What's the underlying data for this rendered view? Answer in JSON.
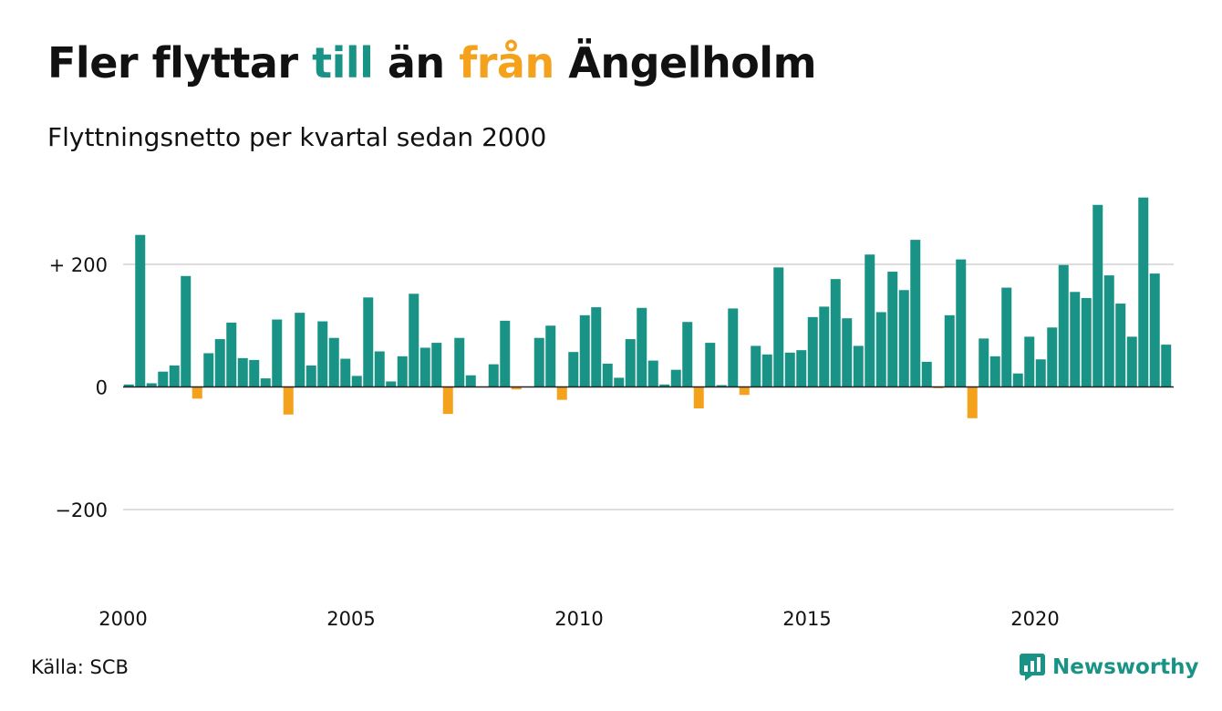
{
  "header": {
    "title_part1": "Fler flyttar ",
    "title_till": "till",
    "title_part2": " än ",
    "title_fran": "från",
    "title_part3": " Ängelholm",
    "subtitle": "Flyttningsnetto per kvartal sedan 2000"
  },
  "footer": {
    "source": "Källa: SCB",
    "brand": "Newsworthy"
  },
  "colors": {
    "positive": "#1a9387",
    "negative": "#f4a11c",
    "grid": "#dddddd",
    "axis": "#222222"
  },
  "chart_data": {
    "type": "bar",
    "title": "Fler flyttar till än från Ängelholm",
    "subtitle": "Flyttningsnetto per kvartal sedan 2000",
    "ylim": [
      -300,
      330
    ],
    "yticks": [
      {
        "value": 200,
        "label": "+ 200"
      },
      {
        "value": 0,
        "label": "0"
      },
      {
        "value": -200,
        "label": "−200"
      }
    ],
    "xticks": [
      {
        "value": 2000,
        "label": "2000"
      },
      {
        "value": 2005,
        "label": "2005"
      },
      {
        "value": 2010,
        "label": "2010"
      },
      {
        "value": 2015,
        "label": "2015"
      },
      {
        "value": 2020,
        "label": "2020"
      }
    ],
    "first_quarter": "2000 K1",
    "grid": true,
    "values": [
      4,
      248,
      6,
      25,
      35,
      181,
      -19,
      55,
      78,
      105,
      47,
      44,
      14,
      110,
      -45,
      121,
      35,
      107,
      80,
      46,
      18,
      146,
      58,
      9,
      50,
      152,
      64,
      72,
      -44,
      80,
      19,
      0,
      37,
      108,
      -4,
      0,
      80,
      100,
      -21,
      57,
      117,
      130,
      38,
      15,
      78,
      129,
      43,
      4,
      28,
      106,
      -35,
      72,
      3,
      128,
      -13,
      67,
      53,
      195,
      56,
      60,
      114,
      131,
      176,
      112,
      67,
      216,
      122,
      188,
      158,
      240,
      41,
      -2,
      117,
      208,
      -51,
      79,
      50,
      162,
      22,
      82,
      45,
      97,
      199,
      155,
      145,
      297,
      182,
      136,
      82,
      309,
      185,
      69
    ]
  }
}
